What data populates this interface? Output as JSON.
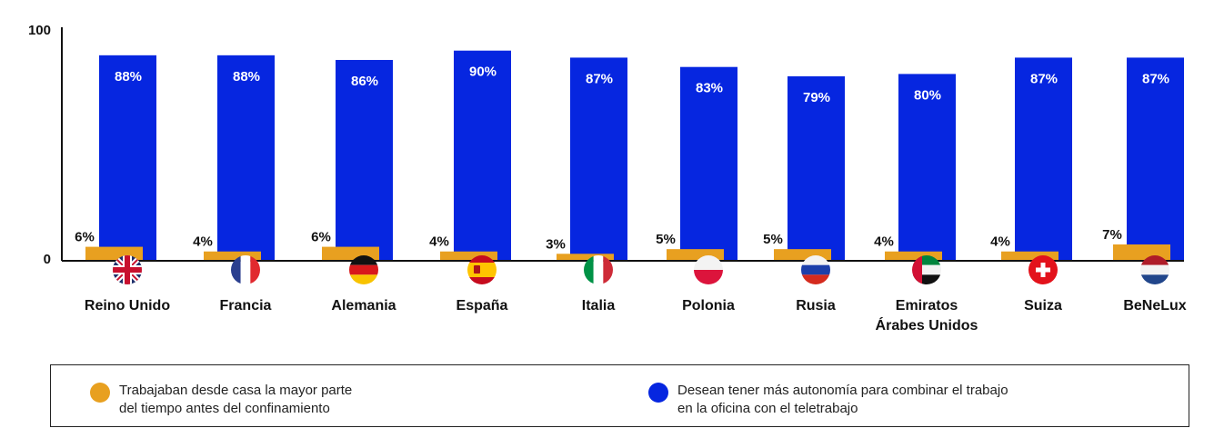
{
  "chart_data": {
    "type": "bar",
    "categories": [
      "Reino Unido",
      "Francia",
      "Alemania",
      "España",
      "Italia",
      "Polonia",
      "Rusia",
      "Emiratos Árabes Unidos",
      "Suiza",
      "BeNeLux"
    ],
    "category_lines": [
      [
        "Reino Unido"
      ],
      [
        "Francia"
      ],
      [
        "Alemania"
      ],
      [
        "España"
      ],
      [
        "Italia"
      ],
      [
        "Polonia"
      ],
      [
        "Rusia"
      ],
      [
        "Emiratos",
        "Árabes Unidos"
      ],
      [
        "Suiza"
      ],
      [
        "BeNeLux"
      ]
    ],
    "flags": [
      "uk-flag-icon",
      "france-flag-icon",
      "germany-flag-icon",
      "spain-flag-icon",
      "italy-flag-icon",
      "poland-flag-icon",
      "russia-flag-icon",
      "uae-flag-icon",
      "switzerland-flag-icon",
      "benelux-flag-icon"
    ],
    "series": [
      {
        "name": "Trabajaban desde casa la mayor parte del tiempo antes del confinamiento",
        "color": "#E8A020",
        "values": [
          6,
          4,
          6,
          4,
          3,
          5,
          5,
          4,
          4,
          7
        ],
        "labels": [
          "6%",
          "4%",
          "6%",
          "4%",
          "3%",
          "5%",
          "5%",
          "4%",
          "4%",
          "7%"
        ]
      },
      {
        "name": "Desean tener más autonomía para combinar el trabajo en la oficina con el teletrabajo",
        "color": "#0626E0",
        "values": [
          88,
          88,
          86,
          90,
          87,
          83,
          79,
          80,
          87,
          87
        ],
        "labels": [
          "88%",
          "88%",
          "86%",
          "90%",
          "87%",
          "83%",
          "79%",
          "80%",
          "87%",
          "87%"
        ]
      }
    ],
    "yticks": [
      "0",
      "100"
    ],
    "ylim": [
      0,
      100
    ],
    "legend_position": "bottom",
    "grid": false
  },
  "legend": {
    "item1_lines": [
      "Trabajaban desde casa la mayor parte",
      "del tiempo antes del confinamiento"
    ],
    "item2_lines": [
      "Desean tener más autonomía para combinar el trabajo",
      "en la oficina con el teletrabajo"
    ]
  }
}
